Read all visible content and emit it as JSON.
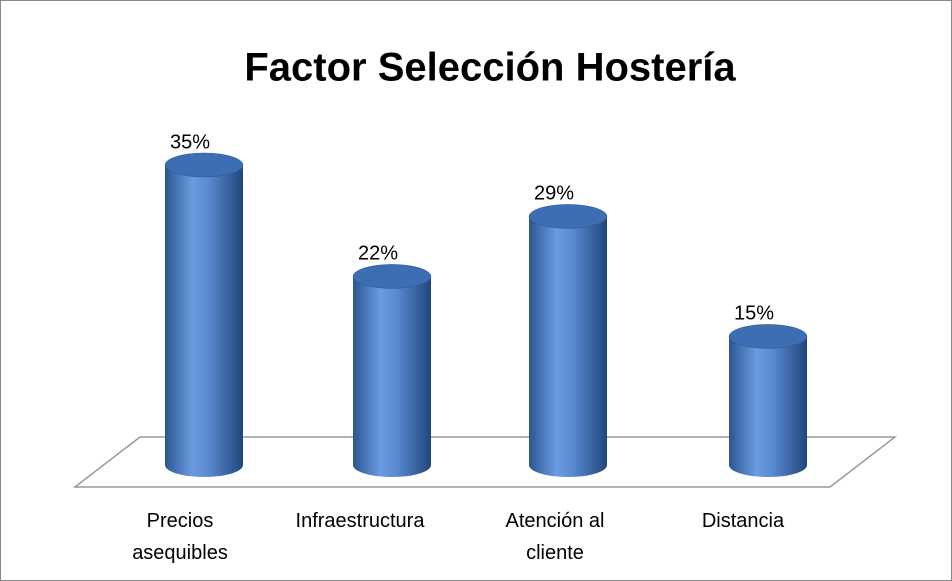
{
  "chart_data": {
    "type": "bar3d",
    "title": "Factor Selección Hostería",
    "categories": [
      "Precios asequibles",
      "Infraestructura",
      "Atención al cliente",
      "Distancia"
    ],
    "values": [
      35,
      22,
      29,
      15
    ],
    "value_labels": [
      "35%",
      "22%",
      "29%",
      "15%"
    ],
    "color": "#4f81bd"
  }
}
